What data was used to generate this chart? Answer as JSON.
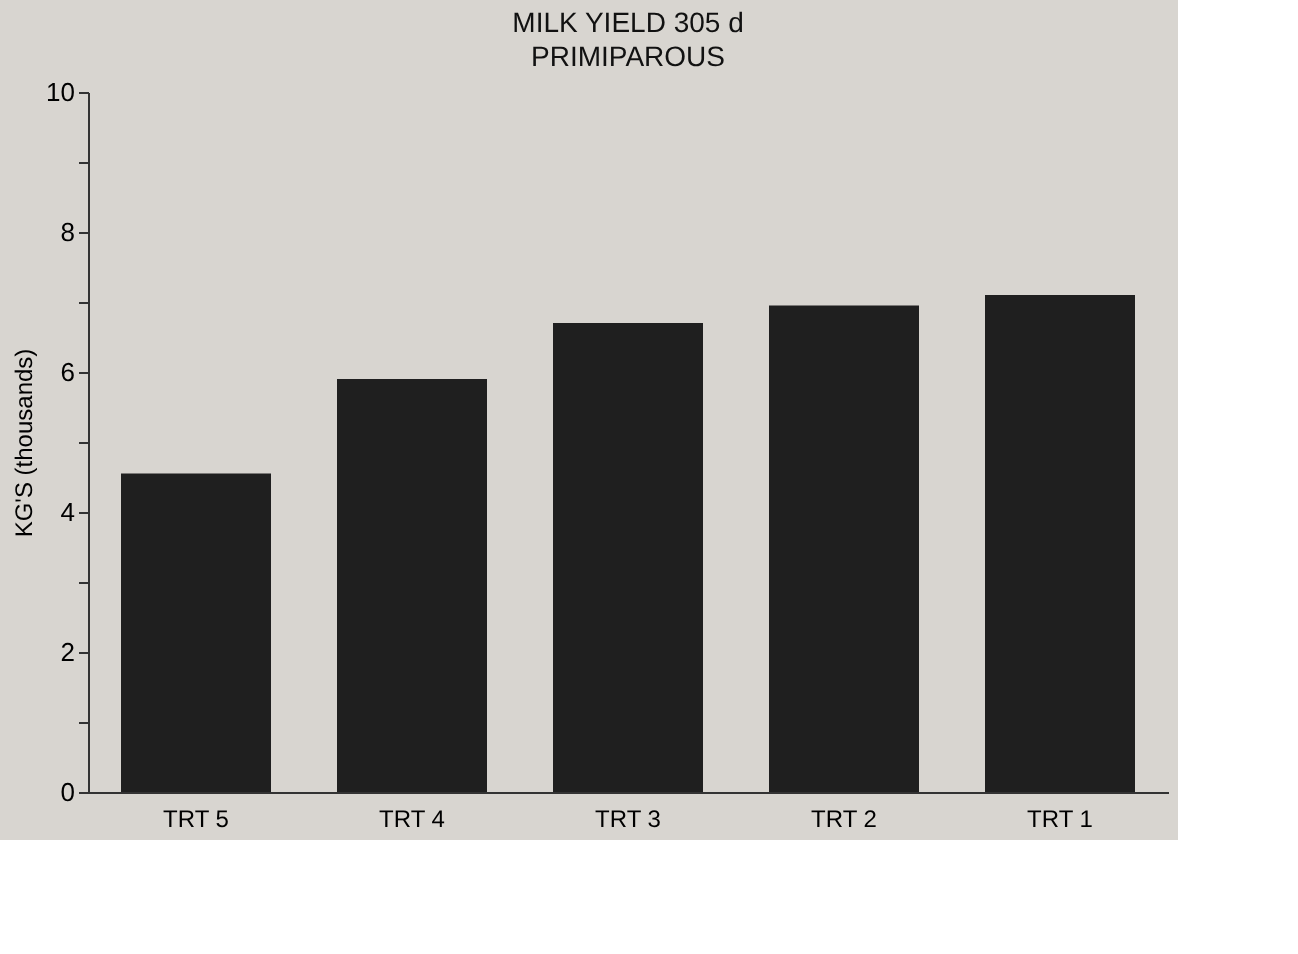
{
  "chart_data": {
    "type": "bar",
    "title": "MILK YIELD 305 d",
    "subtitle": "PRIMIPAROUS",
    "ylabel": "KG'S (thousands)",
    "categories": [
      "TRT 5",
      "TRT 4",
      "TRT 3",
      "TRT 2",
      "TRT 1"
    ],
    "values": [
      4.55,
      5.9,
      6.7,
      6.95,
      7.1
    ],
    "color": "#1f1f1f",
    "ylim": [
      0,
      10
    ],
    "yticks": [
      0,
      {
        "value": 1,
        "label": null
      },
      2,
      {
        "value": 3,
        "label": null
      },
      4,
      {
        "value": 5,
        "label": null
      },
      6,
      {
        "value": 7,
        "label": null
      },
      8,
      {
        "value": 9,
        "label": null
      },
      10
    ],
    "grid": false
  }
}
